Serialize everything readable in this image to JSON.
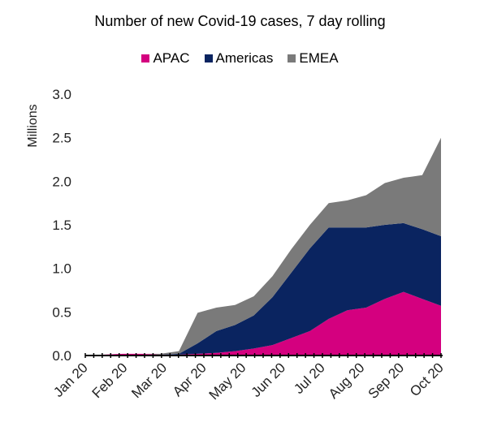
{
  "chart_data": {
    "type": "area",
    "stacked": true,
    "title": "Number of new Covid-19 cases, 7 day rolling",
    "ylabel": "Millions",
    "xlabel": "",
    "ylim": [
      0,
      3.0
    ],
    "yticks": [
      "0.0",
      "0.5",
      "1.0",
      "1.5",
      "2.0",
      "2.5",
      "3.0"
    ],
    "xtick_labels": [
      "Jan 20",
      "Feb 20",
      "Mar 20",
      "Apr 20",
      "May 20",
      "Jun 20",
      "Jul 20",
      "Aug 20",
      "Sep 20",
      "Oct 20"
    ],
    "grid": false,
    "legend_position": "top",
    "x": [
      "Jan 20",
      "Jan 20 mid",
      "Feb 20",
      "Feb 20 mid",
      "Mar 20",
      "Mar 20 mid",
      "Apr 20",
      "Apr 20 mid",
      "May 20",
      "May 20 mid",
      "Jun 20",
      "Jun 20 mid",
      "Jul 20",
      "Jul 20 mid",
      "Aug 20",
      "Aug 20 mid",
      "Sep 20",
      "Sep 20 mid",
      "Oct 20",
      "Oct 20 end"
    ],
    "series": [
      {
        "name": "APAC",
        "color": "#d4007f",
        "values": [
          0.0,
          0.01,
          0.02,
          0.02,
          0.01,
          0.01,
          0.02,
          0.03,
          0.05,
          0.08,
          0.12,
          0.2,
          0.28,
          0.42,
          0.52,
          0.55,
          0.65,
          0.73,
          0.65,
          0.57
        ]
      },
      {
        "name": "Americas",
        "color": "#0a2460",
        "values": [
          0.0,
          0.0,
          0.0,
          0.0,
          0.0,
          0.01,
          0.12,
          0.25,
          0.3,
          0.38,
          0.55,
          0.75,
          0.95,
          1.05,
          0.95,
          0.92,
          0.85,
          0.79,
          0.8,
          0.8
        ]
      },
      {
        "name": "EMEA",
        "color": "#7a7a7a",
        "values": [
          0.0,
          0.0,
          0.0,
          0.0,
          0.01,
          0.03,
          0.35,
          0.27,
          0.23,
          0.22,
          0.24,
          0.27,
          0.27,
          0.28,
          0.31,
          0.37,
          0.48,
          0.52,
          0.62,
          1.13
        ]
      }
    ]
  }
}
